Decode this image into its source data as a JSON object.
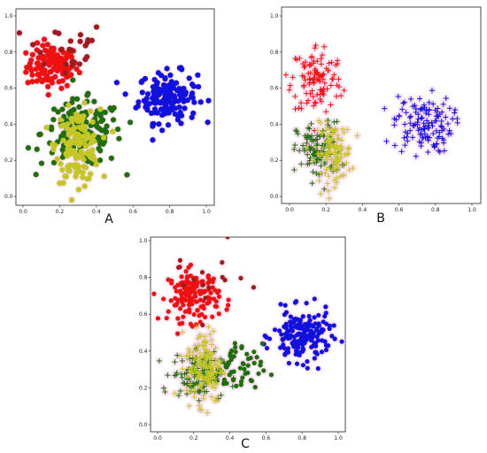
{
  "figure": {
    "panels": [
      {
        "label": "A",
        "marker": "circle"
      },
      {
        "label": "B",
        "marker": "plus"
      },
      {
        "label": "C",
        "marker": "mixed"
      }
    ],
    "colors": {
      "red": "#ee1111",
      "darkred": "#9b1c1c",
      "blue": "#1111dd",
      "green": "#1f6e0c",
      "yellow": "#c3c624",
      "pinkhalo": "#f6c9e6"
    }
  },
  "chart_data": [
    {
      "type": "scatter",
      "panel": "A",
      "xlim": [
        0,
        1.0
      ],
      "ylim": [
        0,
        1.0
      ],
      "xticks": [
        "0.0",
        "0.2",
        "0.4",
        "0.6",
        "0.8",
        "1.0"
      ],
      "yticks": [
        "0.0",
        "0.2",
        "0.4",
        "0.6",
        "0.8",
        "1.0"
      ],
      "grid": false,
      "series": [
        {
          "color": "red",
          "marker": "circle",
          "n": 120,
          "center": [
            0.16,
            0.72
          ],
          "spread": [
            0.07,
            0.06
          ]
        },
        {
          "color": "darkred",
          "marker": "circle",
          "n": 25,
          "center": [
            0.22,
            0.82
          ],
          "spread": [
            0.12,
            0.08
          ]
        },
        {
          "color": "blue",
          "marker": "circle",
          "n": 160,
          "center": [
            0.79,
            0.55
          ],
          "spread": [
            0.08,
            0.07
          ]
        },
        {
          "color": "green",
          "marker": "circle",
          "n": 150,
          "center": [
            0.32,
            0.35
          ],
          "spread": [
            0.11,
            0.09
          ]
        },
        {
          "color": "yellow",
          "marker": "circle",
          "n": 140,
          "center": [
            0.3,
            0.28
          ],
          "spread": [
            0.06,
            0.1
          ]
        }
      ]
    },
    {
      "type": "scatter",
      "panel": "B",
      "xlim": [
        0,
        1.0
      ],
      "ylim": [
        0,
        1.0
      ],
      "xticks": [
        "0.0",
        "0.2",
        "0.4",
        "0.6",
        "0.8",
        "1.0"
      ],
      "yticks": [
        "0.0",
        "0.2",
        "0.4",
        "0.6",
        "0.8",
        "1.0"
      ],
      "grid": false,
      "series": [
        {
          "color": "red",
          "marker": "plus",
          "n": 110,
          "center": [
            0.15,
            0.65
          ],
          "spread": [
            0.07,
            0.1
          ]
        },
        {
          "color": "blue",
          "marker": "plus",
          "n": 130,
          "center": [
            0.73,
            0.4
          ],
          "spread": [
            0.08,
            0.08
          ]
        },
        {
          "color": "green",
          "marker": "plus",
          "n": 110,
          "center": [
            0.16,
            0.25
          ],
          "spread": [
            0.06,
            0.08
          ]
        },
        {
          "color": "yellow",
          "marker": "plus",
          "n": 120,
          "center": [
            0.24,
            0.24
          ],
          "spread": [
            0.05,
            0.08
          ]
        }
      ]
    },
    {
      "type": "scatter",
      "panel": "C",
      "xlim": [
        0,
        1.0
      ],
      "ylim": [
        0,
        1.0
      ],
      "xticks": [
        "0.0",
        "0.2",
        "0.4",
        "0.6",
        "0.8",
        "1.0"
      ],
      "yticks": [
        "0.0",
        "0.2",
        "0.4",
        "0.6",
        "0.8",
        "1.0"
      ],
      "grid": false,
      "series": [
        {
          "color": "red",
          "marker": "circle",
          "n": 150,
          "center": [
            0.2,
            0.7
          ],
          "spread": [
            0.07,
            0.07
          ]
        },
        {
          "color": "darkred",
          "marker": "circle",
          "n": 15,
          "center": [
            0.25,
            0.78
          ],
          "spread": [
            0.12,
            0.1
          ]
        },
        {
          "color": "blue",
          "marker": "circle",
          "n": 180,
          "center": [
            0.8,
            0.48
          ],
          "spread": [
            0.08,
            0.07
          ]
        },
        {
          "color": "green",
          "marker": "plus",
          "n": 120,
          "center": [
            0.22,
            0.27
          ],
          "spread": [
            0.07,
            0.06
          ]
        },
        {
          "color": "green",
          "marker": "circle",
          "n": 60,
          "center": [
            0.42,
            0.3
          ],
          "spread": [
            0.08,
            0.07
          ]
        },
        {
          "color": "yellow",
          "marker": "plus",
          "n": 170,
          "center": [
            0.26,
            0.32
          ],
          "spread": [
            0.05,
            0.1
          ]
        }
      ]
    }
  ]
}
